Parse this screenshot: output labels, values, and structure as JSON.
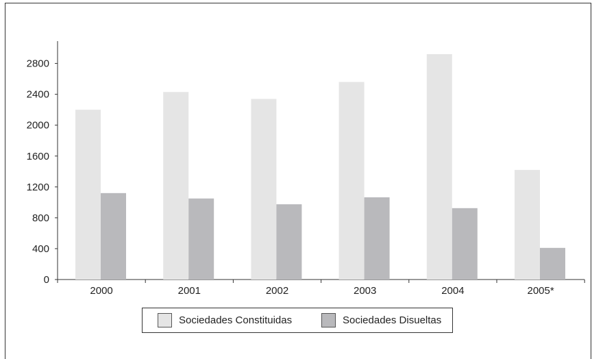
{
  "chart_data": {
    "type": "bar",
    "categories": [
      "2000",
      "2001",
      "2002",
      "2003",
      "2004",
      "2005*"
    ],
    "series": [
      {
        "name": "Sociedades Constituidas",
        "values": [
          2200,
          2430,
          2340,
          2560,
          2920,
          1420
        ],
        "color": "#e5e5e5"
      },
      {
        "name": "Sociedades Disueltas",
        "values": [
          1120,
          1050,
          975,
          1065,
          925,
          410
        ],
        "color": "#b9b9bc"
      }
    ],
    "ylim": [
      0,
      3000
    ],
    "yticks": [
      0,
      400,
      800,
      1200,
      1600,
      2000,
      2400,
      2800
    ],
    "ytick_labels": [
      "0",
      "400",
      "800",
      "1200",
      "1600",
      "2000",
      "2400",
      "2800"
    ],
    "grid": false,
    "legend_position": "bottom-center"
  }
}
